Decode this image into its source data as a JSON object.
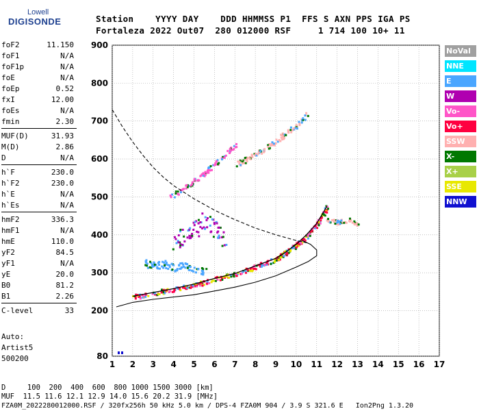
{
  "logo": {
    "top": "Lowell",
    "bottom": "DIGISONDE"
  },
  "header": {
    "line1": "Station    YYYY DAY    DDD HHMMSS P1  FFS S AXN PPS IGA PS",
    "line2": "Fortaleza 2022 Out07  280 012000 RSF     1 714 100 10+ 11"
  },
  "params": [
    {
      "label": "foF2",
      "value": "11.150"
    },
    {
      "label": "foF1",
      "value": "N/A"
    },
    {
      "label": "foF1p",
      "value": "N/A"
    },
    {
      "label": "foE",
      "value": "N/A"
    },
    {
      "label": "foEp",
      "value": "0.52"
    },
    {
      "label": "fxI",
      "value": "12.00"
    },
    {
      "label": "foEs",
      "value": "N/A"
    },
    {
      "label": "fmin",
      "value": "2.30"
    },
    {
      "label": "MUF(D)",
      "value": "31.93"
    },
    {
      "label": "M(D)",
      "value": "2.86"
    },
    {
      "label": "D",
      "value": "N/A"
    },
    {
      "label": "h`F",
      "value": "230.0"
    },
    {
      "label": "h`F2",
      "value": "230.0"
    },
    {
      "label": "h`E",
      "value": "N/A"
    },
    {
      "label": "h`Es",
      "value": "N/A"
    },
    {
      "label": "hmF2",
      "value": "336.3"
    },
    {
      "label": "hmF1",
      "value": "N/A"
    },
    {
      "label": "hmE",
      "value": "110.0"
    },
    {
      "label": "yF2",
      "value": "84.5"
    },
    {
      "label": "yF1",
      "value": "N/A"
    },
    {
      "label": "yE",
      "value": "20.0"
    },
    {
      "label": "B0",
      "value": "81.2"
    },
    {
      "label": "B1",
      "value": "2.26"
    },
    {
      "label": "C-level",
      "value": "33"
    }
  ],
  "auto": {
    "title": "Auto:",
    "line1": "Artist5",
    "line2": "500200"
  },
  "legend": [
    {
      "label": "NoVal",
      "color": "#a0a0a0",
      "text_color": "#ffffff"
    },
    {
      "label": "NNE",
      "color": "#00e5ff",
      "text_color": "#ffffff"
    },
    {
      "label": "E",
      "color": "#4aa6ff",
      "text_color": "#ffffff"
    },
    {
      "label": "W",
      "color": "#b000b0",
      "text_color": "#ffffff"
    },
    {
      "label": "Vo-",
      "color": "#ff55c8",
      "text_color": "#ffffff"
    },
    {
      "label": "Vo+",
      "color": "#ff0040",
      "text_color": "#ffffff"
    },
    {
      "label": "SSW",
      "color": "#ffb0b0",
      "text_color": "#ffffff"
    },
    {
      "label": "X-",
      "color": "#007800",
      "text_color": "#ffffff"
    },
    {
      "label": "X+",
      "color": "#a8d048",
      "text_color": "#ffffff"
    },
    {
      "label": "SSE",
      "color": "#e8e800",
      "text_color": "#ffffff"
    },
    {
      "label": "NNW",
      "color": "#1010d0",
      "text_color": "#ffffff"
    }
  ],
  "footer": {
    "distances": "D     100  200  400  600  800 1000 1500 3000 [km]",
    "mufs": "MUF  11.5 11.6 12.1 12.9 14.0 15.6 20.2 31.9 [MHz]",
    "file": "FZA0M_2022280012000.RSF / 320fx256h 50 kHz 5.0 km / DPS-4 FZA0M 904 / 3.9 S 321.6 E   Ion2Png 1.3.20"
  },
  "chart_data": {
    "type": "scatter",
    "xlim": [
      1,
      17
    ],
    "ylim": [
      80,
      900
    ],
    "xticks": [
      "1",
      "2",
      "3",
      "4",
      "5",
      "6",
      "7",
      "8",
      "9",
      "10",
      "11",
      "12",
      "13",
      "14",
      "15",
      "16",
      "17"
    ],
    "yticks": [
      "80",
      "200",
      "300",
      "400",
      "500",
      "600",
      "700",
      "800",
      "900"
    ],
    "ytick_values": [
      80,
      200,
      300,
      400,
      500,
      600,
      700,
      800,
      900
    ],
    "traces": [
      {
        "name": "o-trace",
        "color": "#ff0040",
        "x": [
          2.0,
          3.0,
          4.0,
          5.0,
          6.0,
          7.0,
          8.0,
          9.0,
          9.5,
          10.0,
          10.5,
          11.0,
          11.5
        ],
        "y": [
          238,
          248,
          258,
          270,
          285,
          298,
          318,
          338,
          355,
          375,
          400,
          430,
          475
        ]
      },
      {
        "name": "o-trace-2nd-hop",
        "color": "#ff55c8",
        "x": [
          3.8,
          4.5,
          5.0,
          5.5,
          6.0,
          6.5,
          7.0
        ],
        "y": [
          500,
          525,
          545,
          565,
          590,
          610,
          640
        ]
      },
      {
        "name": "x-trace-2nd-hop",
        "color": "#ffb0b0",
        "x": [
          7.0,
          7.5,
          8.0,
          8.5,
          9.0,
          9.5,
          10.0,
          10.5
        ],
        "y": [
          585,
          600,
          615,
          630,
          650,
          670,
          690,
          720
        ]
      },
      {
        "name": "e-cloud",
        "color": "#4aa6ff",
        "x": [
          2.5,
          3.0,
          3.5,
          4.0,
          4.5,
          5.0,
          5.5
        ],
        "y": [
          330,
          320,
          325,
          315,
          320,
          310,
          305
        ]
      },
      {
        "name": "w-cloud",
        "color": "#b000b0",
        "x": [
          4.0,
          4.5,
          5.0,
          5.5,
          6.0,
          6.5
        ],
        "y": [
          380,
          400,
          420,
          440,
          410,
          390
        ]
      },
      {
        "name": "ssw-scatter",
        "color": "#ffb0b0",
        "x": [
          11.5,
          12.0,
          12.5,
          13.0
        ],
        "y": [
          440,
          435,
          440,
          430
        ]
      }
    ],
    "profile": {
      "x": [
        1.2,
        2,
        3,
        4,
        5,
        6,
        7,
        8,
        9,
        10,
        10.6,
        11.0,
        11.0,
        10.7,
        10.3
      ],
      "y": [
        210,
        222,
        230,
        236,
        242,
        252,
        262,
        275,
        292,
        315,
        330,
        345,
        360,
        375,
        385
      ]
    },
    "dashed_curve": {
      "x": [
        1.0,
        1.5,
        2.0,
        2.5,
        3.0,
        3.5,
        4.0,
        5.0,
        6.0,
        7.0,
        8.0,
        9.0,
        10.0,
        10.6
      ],
      "y": [
        730,
        685,
        645,
        610,
        578,
        552,
        530,
        495,
        465,
        440,
        418,
        400,
        385,
        378
      ]
    }
  }
}
